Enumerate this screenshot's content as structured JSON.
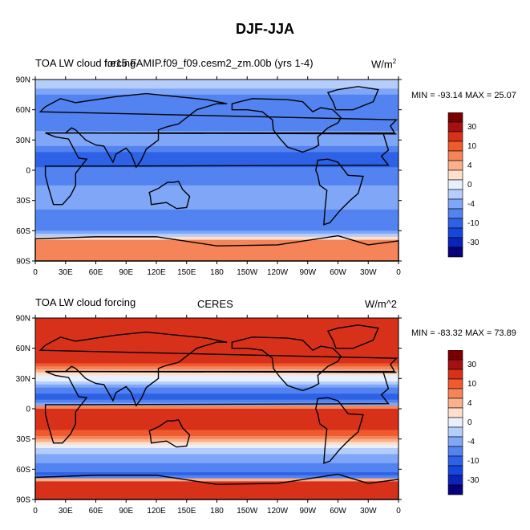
{
  "figure": {
    "title": "DJF-JJA"
  },
  "colors": {
    "scale": [
      "#08007a",
      "#0a23b8",
      "#1547dc",
      "#2e62e6",
      "#5283f0",
      "#7fa6f7",
      "#b4cdfb",
      "#e8f0fd",
      "#fde0cc",
      "#f9b08b",
      "#f58458",
      "#ef5a2e",
      "#d8311a",
      "#a51010",
      "#7a0000"
    ],
    "land": "#000000"
  },
  "colorbar": {
    "labels": [
      "30",
      "10",
      "4",
      "0",
      "-4",
      "-10",
      "-30"
    ]
  },
  "panels": [
    {
      "id": "model",
      "left_title": "TOA LW cloud forcing",
      "center_title": "f.e15.FAMIP.f09_f09.cesm2_zm.00b (yrs 1-4)",
      "units": "W/m",
      "units_sup": "2",
      "stats": "MIN = -93.14 MAX =  25.07"
    },
    {
      "id": "obs",
      "left_title": "TOA LW cloud forcing",
      "center_title": "CERES",
      "units": "W/m^2",
      "units_sup": "",
      "stats": "MIN = -83.32 MAX =  73.89"
    }
  ],
  "chart_data": [
    {
      "type": "heatmap",
      "title": "TOA LW cloud forcing",
      "subtitle": "f.e15.FAMIP.f09_f09.cesm2_zm.00b (yrs 1-4)",
      "units": "W/m^2",
      "x_ticks": [
        "0",
        "30E",
        "60E",
        "90E",
        "120E",
        "150E",
        "180",
        "150W",
        "120W",
        "90W",
        "60W",
        "30W",
        "0"
      ],
      "y_ticks": [
        "90N",
        "60N",
        "30N",
        "0",
        "30S",
        "60S",
        "90S"
      ],
      "xlim": [
        0,
        360
      ],
      "ylim": [
        -90,
        90
      ],
      "color_levels": [
        -30,
        -10,
        -4,
        0,
        4,
        10,
        30
      ],
      "min": -93.14,
      "max": 25.07,
      "zonal_profile": [
        {
          "lat": 85,
          "value": -4
        },
        {
          "lat": 70,
          "value": -12
        },
        {
          "lat": 55,
          "value": -18
        },
        {
          "lat": 40,
          "value": -10
        },
        {
          "lat": 25,
          "value": -8
        },
        {
          "lat": 10,
          "value": -30
        },
        {
          "lat": 0,
          "value": -14
        },
        {
          "lat": -10,
          "value": -12
        },
        {
          "lat": -25,
          "value": -6
        },
        {
          "lat": -40,
          "value": -10
        },
        {
          "lat": -55,
          "value": -20
        },
        {
          "lat": -70,
          "value": 4
        },
        {
          "lat": -85,
          "value": 6
        }
      ]
    },
    {
      "type": "heatmap",
      "title": "TOA LW cloud forcing",
      "subtitle": "CERES",
      "units": "W/m^2",
      "x_ticks": [
        "0",
        "30E",
        "60E",
        "90E",
        "120E",
        "150E",
        "180",
        "150W",
        "120W",
        "90W",
        "60W",
        "30W",
        "0"
      ],
      "y_ticks": [
        "90N",
        "60N",
        "30N",
        "0",
        "30S",
        "60S",
        "90S"
      ],
      "xlim": [
        0,
        360
      ],
      "ylim": [
        -90,
        90
      ],
      "color_levels": [
        -30,
        -10,
        -4,
        0,
        4,
        10,
        30
      ],
      "min": -83.32,
      "max": 73.89,
      "zonal_profile": [
        {
          "lat": 85,
          "value": 12
        },
        {
          "lat": 70,
          "value": 14
        },
        {
          "lat": 55,
          "value": 18
        },
        {
          "lat": 40,
          "value": 4
        },
        {
          "lat": 25,
          "value": -6
        },
        {
          "lat": 10,
          "value": -28
        },
        {
          "lat": 0,
          "value": 10
        },
        {
          "lat": -10,
          "value": 18
        },
        {
          "lat": -25,
          "value": 8
        },
        {
          "lat": -40,
          "value": -4
        },
        {
          "lat": -55,
          "value": -10
        },
        {
          "lat": -65,
          "value": -22
        },
        {
          "lat": -75,
          "value": 20
        },
        {
          "lat": -85,
          "value": 14
        }
      ]
    }
  ]
}
